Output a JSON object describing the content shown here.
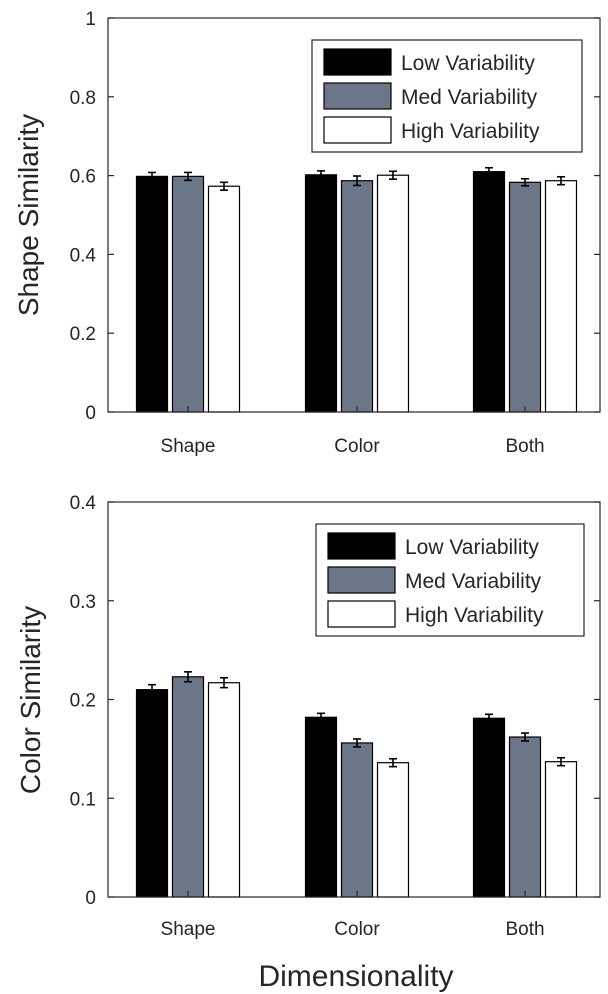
{
  "colors": {
    "low": "#000000",
    "med": "#6b7788",
    "high": "#ffffff",
    "axis": "#262626",
    "error_bar": "#000000"
  },
  "chart_data": [
    {
      "type": "bar",
      "ylabel": "Shape Similarity",
      "xlabel": "",
      "categories": [
        "Shape",
        "Color",
        "Both"
      ],
      "ylim": [
        0,
        1
      ],
      "yticks": [
        "0",
        "0.2",
        "0.4",
        "0.6",
        "0.8",
        "1"
      ],
      "ytick_values": [
        0,
        0.2,
        0.4,
        0.6,
        0.8,
        1
      ],
      "grid": false,
      "legend_position": "top-right",
      "series": [
        {
          "name": "Low Variability",
          "color_key": "low",
          "values": [
            0.598,
            0.602,
            0.61
          ],
          "errors": [
            0.01,
            0.01,
            0.01
          ]
        },
        {
          "name": "Med Variability",
          "color_key": "med",
          "values": [
            0.598,
            0.587,
            0.583
          ],
          "errors": [
            0.01,
            0.012,
            0.009
          ]
        },
        {
          "name": "High Variability",
          "color_key": "high",
          "values": [
            0.573,
            0.601,
            0.587
          ],
          "errors": [
            0.01,
            0.01,
            0.01
          ]
        }
      ]
    },
    {
      "type": "bar",
      "ylabel": "Color Similarity",
      "xlabel": "Dimensionality",
      "categories": [
        "Shape",
        "Color",
        "Both"
      ],
      "ylim": [
        0,
        0.4
      ],
      "yticks": [
        "0",
        "0.1",
        "0.2",
        "0.3",
        "0.4"
      ],
      "ytick_values": [
        0,
        0.1,
        0.2,
        0.3,
        0.4
      ],
      "grid": false,
      "legend_position": "top-right",
      "series": [
        {
          "name": "Low Variability",
          "color_key": "low",
          "values": [
            0.21,
            0.182,
            0.181
          ],
          "errors": [
            0.005,
            0.004,
            0.004
          ]
        },
        {
          "name": "Med Variability",
          "color_key": "med",
          "values": [
            0.223,
            0.156,
            0.162
          ],
          "errors": [
            0.005,
            0.004,
            0.004
          ]
        },
        {
          "name": "High Variability",
          "color_key": "high",
          "values": [
            0.217,
            0.136,
            0.137
          ],
          "errors": [
            0.005,
            0.004,
            0.004
          ]
        }
      ]
    }
  ]
}
